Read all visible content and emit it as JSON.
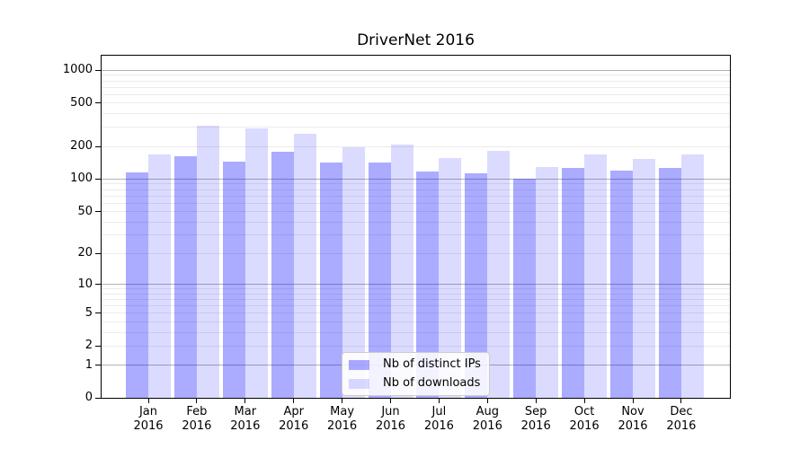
{
  "chart_data": {
    "type": "bar",
    "title": "DriverNet 2016",
    "categories": [
      "Jan 2016",
      "Feb 2016",
      "Mar 2016",
      "Apr 2016",
      "May 2016",
      "Jun 2016",
      "Jul 2016",
      "Aug 2016",
      "Sep 2016",
      "Oct 2016",
      "Nov 2016",
      "Dec 2016"
    ],
    "series": [
      {
        "name": "Nb of distinct IPs",
        "color": "rgba(0,0,255,0.33)",
        "values": [
          115,
          164,
          144,
          179,
          141,
          143,
          118,
          114,
          101,
          127,
          120,
          128
        ]
      },
      {
        "name": "Nb of downloads",
        "color": "rgba(0,0,255,0.14)",
        "values": [
          168,
          310,
          292,
          261,
          198,
          209,
          157,
          181,
          130,
          168,
          155,
          170
        ]
      }
    ],
    "y_axis": {
      "scale": "log10(value+1)",
      "ticks": [
        0,
        1,
        2,
        5,
        10,
        20,
        50,
        100,
        200,
        500,
        1000
      ],
      "major_gridlines": [
        1,
        10,
        100,
        1000
      ],
      "minor_gridlines": [
        2,
        3,
        4,
        5,
        6,
        7,
        8,
        9,
        20,
        30,
        40,
        50,
        60,
        70,
        80,
        90,
        200,
        300,
        400,
        500,
        600,
        700,
        800,
        900
      ],
      "major_gridline_color": "#b2b2b2",
      "minor_gridline_color": "#ebebeb"
    },
    "legend": {
      "position": "lower-center"
    },
    "grid": true,
    "background_color": "#ffffff",
    "spine_color": "#000000"
  }
}
